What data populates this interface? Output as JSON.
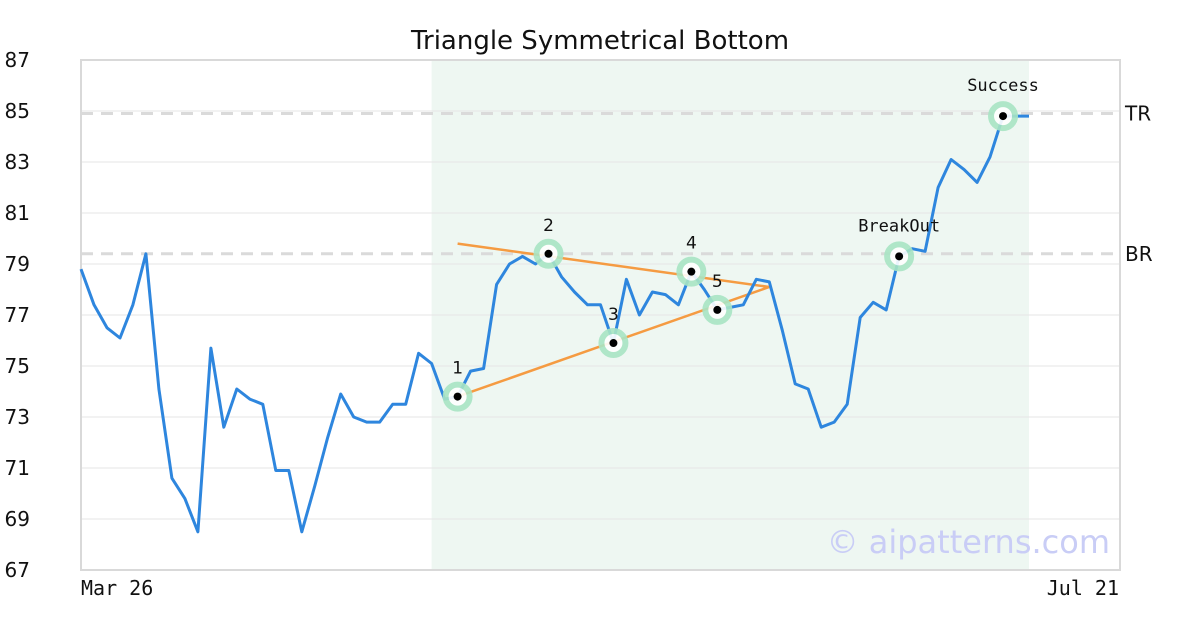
{
  "chart_data": {
    "type": "line",
    "title": "Triangle Symmetrical Bottom",
    "xlabel": "",
    "ylabel": "",
    "ylim": [
      67,
      87
    ],
    "yticks": [
      67,
      69,
      71,
      73,
      75,
      77,
      79,
      81,
      83,
      85,
      87
    ],
    "x_tick_labels": [
      "Mar 26",
      "Jul 21"
    ],
    "grid": true,
    "series": [
      {
        "values": [
          78.8,
          77.4,
          76.5,
          76.1,
          77.4,
          79.4,
          74.1,
          70.6,
          69.8,
          68.5,
          75.7,
          72.6,
          74.1,
          73.7,
          73.5,
          70.9,
          70.9,
          68.5,
          70.3,
          72.2,
          73.9,
          73.0,
          72.8,
          72.8,
          73.5,
          73.5,
          75.5,
          75.1,
          73.7,
          73.8,
          74.8,
          74.9,
          78.2,
          79.0,
          79.3,
          79.0,
          79.4,
          78.5,
          77.9,
          77.4,
          77.4,
          75.9,
          78.4,
          77.0,
          77.9,
          77.8,
          77.4,
          78.7,
          78.0,
          77.2,
          77.3,
          77.4,
          78.4,
          78.3,
          76.4,
          74.3,
          74.1,
          72.6,
          72.8,
          73.5,
          76.9,
          77.5,
          77.2,
          79.3,
          79.6,
          79.5,
          82.0,
          83.1,
          82.7,
          82.2,
          83.2,
          84.8,
          84.8,
          84.8
        ],
        "color": "#2e86de"
      }
    ],
    "pattern_zone": {
      "from_index": 27,
      "to_index": 73,
      "color": "#eef7f2"
    },
    "reference_lines": [
      {
        "label": "TR",
        "value": 84.9
      },
      {
        "label": "BR",
        "value": 79.4
      }
    ],
    "trendlines": [
      {
        "from": {
          "index": 29,
          "value": 79.8
        },
        "to": {
          "index": 53,
          "value": 78.1
        },
        "color": "#f59b42"
      },
      {
        "from": {
          "index": 29,
          "value": 73.8
        },
        "to": {
          "index": 53,
          "value": 78.1
        },
        "color": "#f59b42"
      }
    ],
    "points": [
      {
        "label": "1",
        "index": 29,
        "value": 73.8
      },
      {
        "label": "2",
        "index": 36,
        "value": 79.4
      },
      {
        "label": "3",
        "index": 41,
        "value": 75.9
      },
      {
        "label": "4",
        "index": 47,
        "value": 78.7
      },
      {
        "label": "5",
        "index": 49,
        "value": 77.2
      }
    ],
    "annotations": [
      {
        "label": "BreakOut",
        "index": 63,
        "value": 79.3
      },
      {
        "label": "Success",
        "index": 71,
        "value": 84.8
      }
    ],
    "watermark": "© aipatterns.com"
  }
}
